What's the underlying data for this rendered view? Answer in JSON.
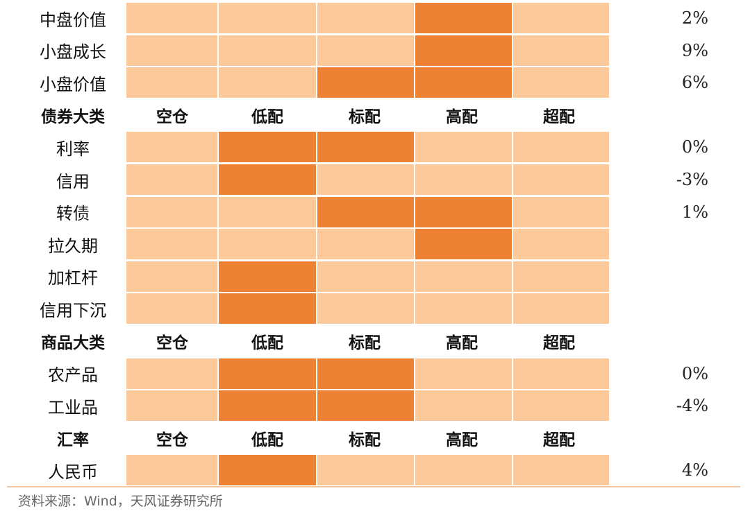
{
  "colors": {
    "light": "#fbc99a",
    "dark": "#ee8234",
    "divider": "#f4c7a1"
  },
  "chart_data": {
    "type": "heatmap",
    "columns": [
      "空仓",
      "低配",
      "标配",
      "高配",
      "超配"
    ],
    "rows": [
      {
        "label": "中盘价值",
        "levels": [
          0,
          0,
          0,
          1,
          0
        ],
        "value": "2%"
      },
      {
        "label": "小盘成长",
        "levels": [
          0,
          0,
          0,
          1,
          0
        ],
        "value": "9%"
      },
      {
        "label": "小盘价值",
        "levels": [
          0,
          0,
          1,
          1,
          0
        ],
        "value": "6%"
      },
      {
        "label": "债券大类",
        "header": true
      },
      {
        "label": "利率",
        "levels": [
          0,
          1,
          1,
          0,
          0
        ],
        "value": "0%"
      },
      {
        "label": "信用",
        "levels": [
          0,
          1,
          0,
          0,
          0
        ],
        "value": "-3%"
      },
      {
        "label": "转债",
        "levels": [
          0,
          0,
          1,
          1,
          0
        ],
        "value": "1%"
      },
      {
        "label": "拉久期",
        "levels": [
          0,
          0,
          0,
          1,
          0
        ],
        "value": ""
      },
      {
        "label": "加杠杆",
        "levels": [
          0,
          1,
          0,
          0,
          0
        ],
        "value": ""
      },
      {
        "label": "信用下沉",
        "levels": [
          0,
          1,
          0,
          0,
          0
        ],
        "value": ""
      },
      {
        "label": "商品大类",
        "header": true
      },
      {
        "label": "农产品",
        "levels": [
          0,
          1,
          1,
          0,
          0
        ],
        "value": "0%"
      },
      {
        "label": "工业品",
        "levels": [
          0,
          1,
          1,
          0,
          0
        ],
        "value": "-4%"
      },
      {
        "label": "汇率",
        "header": true
      },
      {
        "label": "人民币",
        "levels": [
          0,
          1,
          0,
          0,
          0
        ],
        "value": "4%"
      }
    ]
  },
  "footer": {
    "source": "资料来源：Wind，天风证券研究所"
  }
}
